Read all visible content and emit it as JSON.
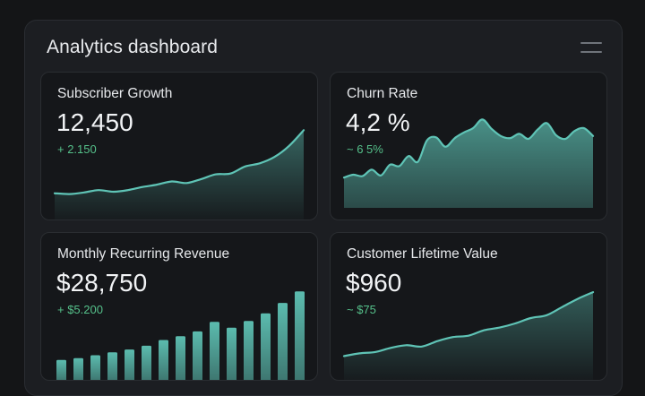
{
  "dashboard": {
    "title": "Analytics dashboard"
  },
  "colors": {
    "accent": "#5fc4b6",
    "positive": "#55c08a",
    "card_bg": "#15171a",
    "panel_bg": "#1c1e22"
  },
  "cards": [
    {
      "title": "Subscriber Growth",
      "value": "12,450",
      "delta": "+ 2.150"
    },
    {
      "title": "Churn Rate",
      "value": "4,2 %",
      "delta": "~ 6 5%"
    },
    {
      "title": "Monthly Recurring Revenue",
      "value": "$28,750",
      "delta": "+ $5.200"
    },
    {
      "title": "Customer Lifetime Value",
      "value": "$960",
      "delta": "~ $75"
    }
  ],
  "chart_data": [
    {
      "type": "area",
      "title": "Subscriber Growth",
      "values": [
        6,
        5,
        7,
        10,
        8,
        10,
        14,
        17,
        21,
        19,
        24,
        30,
        31,
        40,
        44,
        52,
        66,
        86
      ],
      "ylim": [
        0,
        100
      ]
    },
    {
      "type": "area",
      "title": "Churn Rate",
      "values": [
        16,
        20,
        18,
        27,
        19,
        34,
        32,
        46,
        38,
        68,
        72,
        59,
        71,
        79,
        85,
        97,
        84,
        74,
        71,
        77,
        70,
        83,
        92,
        75,
        70,
        81,
        85,
        74
      ],
      "ylim": [
        0,
        100
      ]
    },
    {
      "type": "bar",
      "title": "Monthly Recurring Revenue",
      "values": [
        3,
        5,
        8,
        11,
        14,
        18,
        24,
        28,
        33,
        43,
        37,
        44,
        52,
        63,
        75
      ],
      "ylim": [
        0,
        80
      ]
    },
    {
      "type": "area",
      "title": "Customer Lifetime Value",
      "values": [
        10,
        14,
        16,
        22,
        26,
        24,
        32,
        38,
        40,
        48,
        52,
        58,
        66,
        70,
        82,
        94,
        104
      ],
      "ylim": [
        0,
        120
      ]
    }
  ]
}
